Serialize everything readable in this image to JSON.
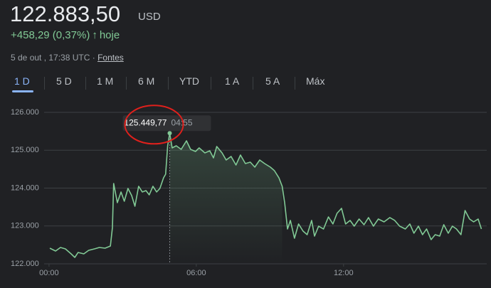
{
  "header": {
    "price": "122.883,50",
    "currency": "USD",
    "change": "+458,29 (0,37%)",
    "arrow": "↑",
    "period": "hoje",
    "timestamp": "5 de out , 17:38 UTC ·",
    "sources": "Fontes"
  },
  "tabs": [
    "1 D",
    "5 D",
    "1 M",
    "6 M",
    "YTD",
    "1 A",
    "5 A",
    "Máx"
  ],
  "chart_data": {
    "type": "line",
    "color": "#81c995",
    "grid": true,
    "x": [
      2,
      16,
      28,
      40,
      54,
      63,
      71,
      85,
      97,
      111,
      123,
      137,
      150,
      155,
      158,
      167,
      176,
      184,
      193,
      202,
      210,
      219,
      228,
      237,
      245,
      254,
      263,
      271,
      280,
      285,
      290,
      295,
      301,
      311,
      323,
      336,
      346,
      358,
      367,
      381,
      393,
      402,
      410,
      423,
      433,
      445,
      457,
      468,
      480,
      492,
      503,
      515,
      527,
      541,
      551,
      562,
      570,
      576,
      583,
      590,
      600,
      610,
      621,
      631,
      642,
      649,
      659,
      671,
      683,
      694,
      704,
      715,
      725,
      736,
      746,
      758,
      770,
      781,
      793,
      805,
      819,
      833,
      845,
      857,
      871,
      882,
      892,
      903,
      913,
      923,
      934,
      944,
      955,
      965,
      976,
      986,
      996,
      1007,
      1017,
      1028,
      1038,
      1049,
      1057
    ],
    "values": [
      122413,
      122338,
      122432,
      122394,
      122263,
      122169,
      122300,
      122263,
      122357,
      122394,
      122432,
      122413,
      122470,
      122958,
      124122,
      123615,
      123897,
      123653,
      123991,
      123803,
      123521,
      124047,
      123897,
      123934,
      123822,
      124047,
      123897,
      123991,
      124272,
      124366,
      125117,
      125449.77,
      125061,
      125117,
      125023,
      125249,
      125023,
      124967,
      125061,
      124930,
      124986,
      124798,
      125099,
      124930,
      124742,
      124836,
      124610,
      124873,
      124648,
      124685,
      124554,
      124742,
      124648,
      124554,
      124460,
      124272,
      124047,
      123615,
      122920,
      123146,
      122676,
      123052,
      122864,
      122770,
      123146,
      122732,
      122995,
      122920,
      123239,
      123052,
      123333,
      123465,
      123052,
      123146,
      122995,
      123183,
      123033,
      123221,
      122995,
      123183,
      123108,
      123221,
      123146,
      122995,
      122920,
      123052,
      122808,
      122995,
      122770,
      122920,
      122639,
      122770,
      122732,
      123033,
      122808,
      122995,
      122920,
      122770,
      123408,
      123183,
      123108,
      123183,
      122920
    ],
    "xlim": [
      -12,
      1070
    ],
    "xticks": [
      {
        "value": 0,
        "label": "00:00"
      },
      {
        "value": 360,
        "label": "06:00"
      },
      {
        "value": 720,
        "label": "12:00"
      }
    ],
    "ylim": [
      122000,
      126000
    ],
    "yticks": [
      {
        "value": 122000,
        "label": "122.000"
      },
      {
        "value": 123000,
        "label": "123.000"
      },
      {
        "value": 124000,
        "label": "124.000"
      },
      {
        "value": 125000,
        "label": "125.000"
      },
      {
        "value": 126000,
        "label": "126.000"
      }
    ],
    "annotation": {
      "label": "125.449,77",
      "time": "04:55"
    }
  }
}
